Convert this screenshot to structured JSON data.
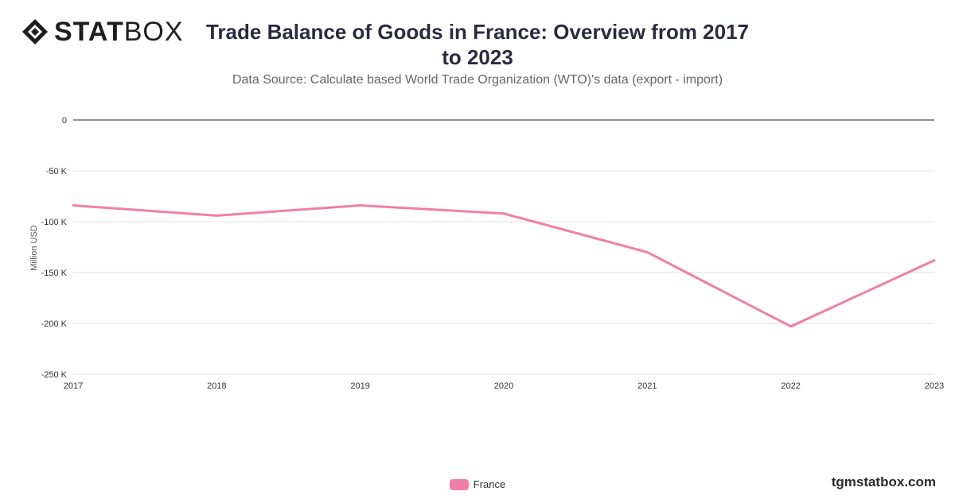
{
  "brand": {
    "logo_strong": "STAT",
    "logo_light": "BOX",
    "logo_icon": "diamond-logo-icon",
    "site": "tgmstatbox.com"
  },
  "colors": {
    "series": "#f07fa8",
    "grid": "#e3e3e3",
    "zero_line": "#222222",
    "text": "#333333"
  },
  "chart_data": {
    "type": "line",
    "title": "Trade Balance of Goods in France: Overview from 2017 to 2023",
    "subtitle": "Data Source: Calculate based World Trade Organization (WTO)'s data (export - import)",
    "xlabel": "",
    "ylabel": "Million USD",
    "x": [
      "2017",
      "2018",
      "2019",
      "2020",
      "2021",
      "2022",
      "2023"
    ],
    "series": [
      {
        "name": "France",
        "values": [
          -84000,
          -94000,
          -84000,
          -92000,
          -130000,
          -203000,
          -138000
        ]
      }
    ],
    "yticks": [
      0,
      -50000,
      -100000,
      -150000,
      -200000,
      -250000
    ],
    "ytick_labels": [
      "0",
      "-50 K",
      "-100 K",
      "-150 K",
      "-200 K",
      "-250 K"
    ],
    "ylim": [
      -250000,
      0
    ],
    "grid": true,
    "legend": "bottom-center"
  }
}
